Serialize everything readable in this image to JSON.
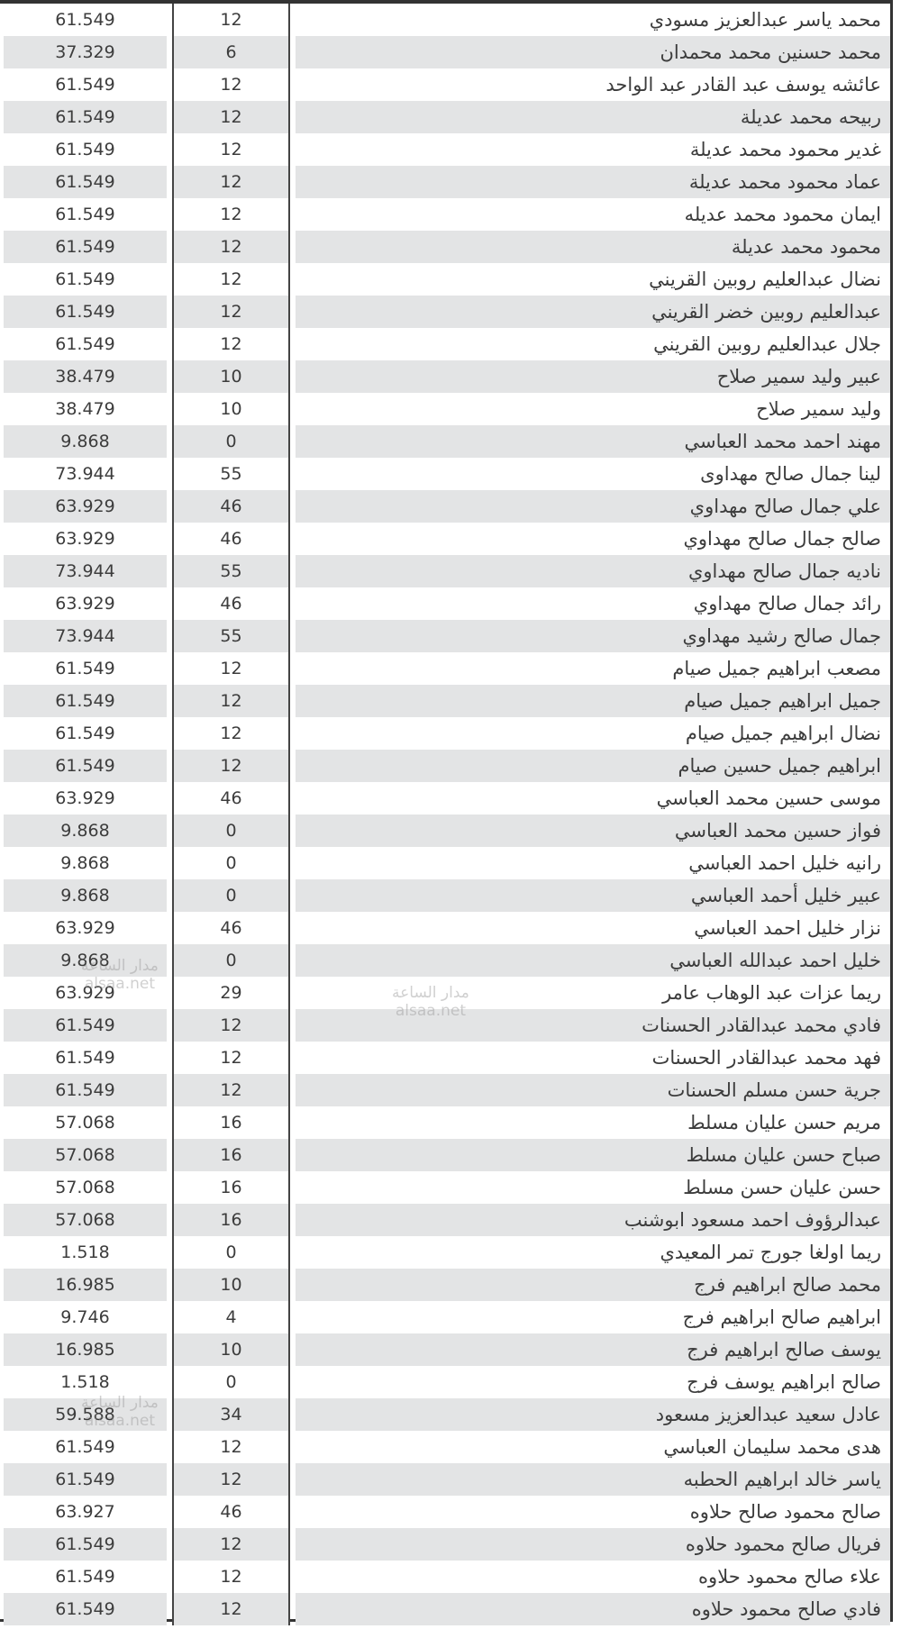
{
  "table": {
    "rows": [
      {
        "value": "61.549",
        "count": "12",
        "name": "محمد ياسر عبدالعزيز مسودي"
      },
      {
        "value": "37.329",
        "count": "6",
        "name": "محمد حسنين محمد محمدان"
      },
      {
        "value": "61.549",
        "count": "12",
        "name": "عائشه يوسف عبد القادر عبد الواحد"
      },
      {
        "value": "61.549",
        "count": "12",
        "name": "ربيحه محمد عديلة"
      },
      {
        "value": "61.549",
        "count": "12",
        "name": "غدير محمود محمد عديلة"
      },
      {
        "value": "61.549",
        "count": "12",
        "name": "عماد محمود محمد عديلة"
      },
      {
        "value": "61.549",
        "count": "12",
        "name": "ايمان محمود محمد عديله"
      },
      {
        "value": "61.549",
        "count": "12",
        "name": "محمود محمد عديلة"
      },
      {
        "value": "61.549",
        "count": "12",
        "name": "نضال عبدالعليم روبين القريني"
      },
      {
        "value": "61.549",
        "count": "12",
        "name": "عبدالعليم روبين خضر القريني"
      },
      {
        "value": "61.549",
        "count": "12",
        "name": "جلال عبدالعليم روبين القريني"
      },
      {
        "value": "38.479",
        "count": "10",
        "name": "عبير وليد سمير صلاح"
      },
      {
        "value": "38.479",
        "count": "10",
        "name": "وليد سمير صلاح"
      },
      {
        "value": "9.868",
        "count": "0",
        "name": "مهند احمد محمد العباسي"
      },
      {
        "value": "73.944",
        "count": "55",
        "name": "لينا جمال صالح مهداوى"
      },
      {
        "value": "63.929",
        "count": "46",
        "name": "علي جمال صالح مهداوي"
      },
      {
        "value": "63.929",
        "count": "46",
        "name": "صالح جمال صالح مهداوي"
      },
      {
        "value": "73.944",
        "count": "55",
        "name": "ناديه جمال صالح مهداوي"
      },
      {
        "value": "63.929",
        "count": "46",
        "name": "رائد جمال صالح مهداوي"
      },
      {
        "value": "73.944",
        "count": "55",
        "name": "جمال صالح رشيد مهداوي"
      },
      {
        "value": "61.549",
        "count": "12",
        "name": "مصعب ابراهيم جميل صيام"
      },
      {
        "value": "61.549",
        "count": "12",
        "name": "جميل ابراهيم جميل صيام"
      },
      {
        "value": "61.549",
        "count": "12",
        "name": "نضال ابراهيم جميل صيام"
      },
      {
        "value": "61.549",
        "count": "12",
        "name": "ابراهيم جميل حسين صيام"
      },
      {
        "value": "63.929",
        "count": "46",
        "name": "موسى حسين محمد العباسي"
      },
      {
        "value": "9.868",
        "count": "0",
        "name": "فواز حسين محمد العباسي"
      },
      {
        "value": "9.868",
        "count": "0",
        "name": "رانيه خليل احمد العباسي"
      },
      {
        "value": "9.868",
        "count": "0",
        "name": "عبير خليل أحمد العباسي"
      },
      {
        "value": "63.929",
        "count": "46",
        "name": "نزار خليل احمد العباسي"
      },
      {
        "value": "9.868",
        "count": "0",
        "name": "خليل احمد عبدالله العباسي"
      },
      {
        "value": "63.929",
        "count": "29",
        "name": "ريما عزات عبد الوهاب عامر"
      },
      {
        "value": "61.549",
        "count": "12",
        "name": "فادي محمد عبدالقادر الحسنات"
      },
      {
        "value": "61.549",
        "count": "12",
        "name": "فهد محمد عبدالقادر الحسنات"
      },
      {
        "value": "61.549",
        "count": "12",
        "name": "جرية حسن مسلم الحسنات"
      },
      {
        "value": "57.068",
        "count": "16",
        "name": "مريم حسن عليان مسلط"
      },
      {
        "value": "57.068",
        "count": "16",
        "name": "صباح حسن عليان مسلط"
      },
      {
        "value": "57.068",
        "count": "16",
        "name": "حسن عليان حسن مسلط"
      },
      {
        "value": "57.068",
        "count": "16",
        "name": "عبدالرؤوف احمد مسعود ابوشنب"
      },
      {
        "value": "1.518",
        "count": "0",
        "name": "ريما اولغا جورج تمر المعيدي"
      },
      {
        "value": "16.985",
        "count": "10",
        "name": "محمد صالح ابراهيم فرج"
      },
      {
        "value": "9.746",
        "count": "4",
        "name": "ابراهيم صالح ابراهيم فرج"
      },
      {
        "value": "16.985",
        "count": "10",
        "name": "يوسف صالح ابراهيم فرج"
      },
      {
        "value": "1.518",
        "count": "0",
        "name": "صالح ابراهيم يوسف فرج"
      },
      {
        "value": "59.588",
        "count": "34",
        "name": "عادل سعيد عبدالعزيز مسعود"
      },
      {
        "value": "61.549",
        "count": "12",
        "name": "هدى محمد سليمان العباسي"
      },
      {
        "value": "61.549",
        "count": "12",
        "name": "ياسر خالد ابراهيم الحطبه"
      },
      {
        "value": "63.927",
        "count": "46",
        "name": "صالح محمود صالح حلاوه"
      },
      {
        "value": "61.549",
        "count": "12",
        "name": "فريال صالح محمود حلاوه"
      },
      {
        "value": "61.549",
        "count": "12",
        "name": "علاء صالح محمود حلاوه"
      },
      {
        "value": "61.549",
        "count": "12",
        "name": "فادي صالح محمود حلاوه"
      }
    ],
    "stripe_color": "#e3e4e5",
    "text_color": "#3c3c3c"
  },
  "watermark": {
    "line1": "مدار الساعة",
    "line2": "alsaa.net"
  }
}
